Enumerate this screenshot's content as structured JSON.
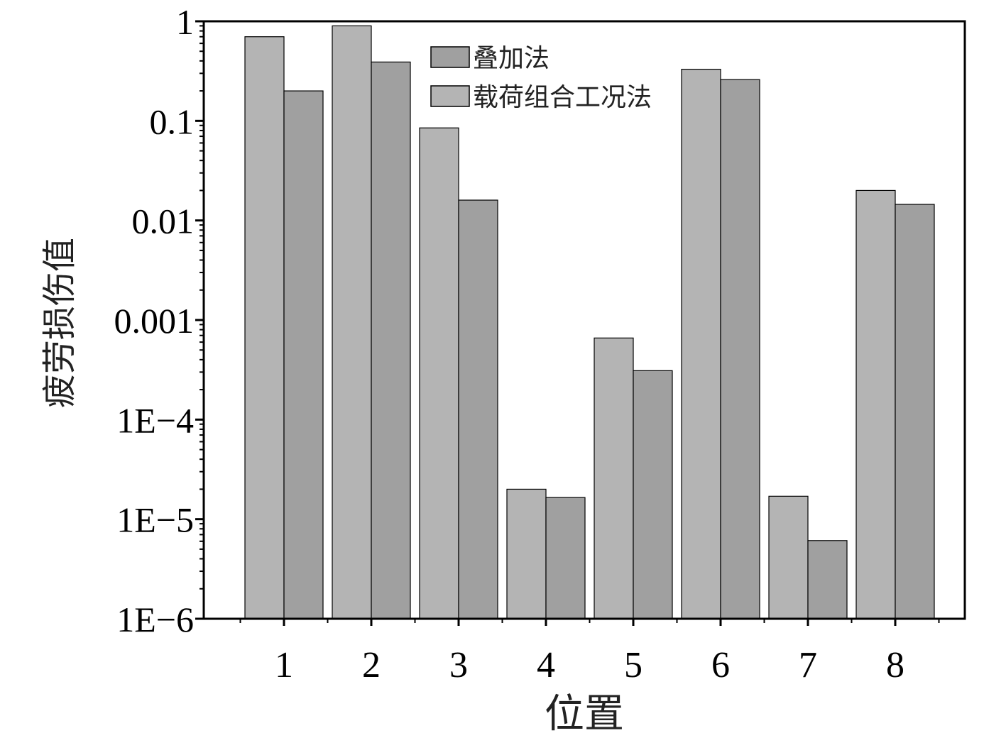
{
  "chart_data": {
    "type": "bar",
    "title": "",
    "xlabel": "位置",
    "ylabel": "疲劳损伤值",
    "yscale": "log",
    "ylim": [
      1e-06,
      1
    ],
    "yticks": [
      1,
      0.1,
      0.01,
      0.001,
      0.0001,
      1e-05,
      1e-06
    ],
    "ytick_labels": [
      "1",
      "0.1",
      "0.01",
      "0.001",
      "1E−4",
      "1E−5",
      "1E−6"
    ],
    "categories": [
      "1",
      "2",
      "3",
      "4",
      "5",
      "6",
      "7",
      "8"
    ],
    "series": [
      {
        "name": "载荷组合工况法",
        "color": "#b4b4b4",
        "values": [
          0.7,
          0.9,
          0.085,
          2e-05,
          0.00066,
          0.33,
          1.7e-05,
          0.02
        ]
      },
      {
        "name": "叠加法",
        "color": "#a0a0a0",
        "values": [
          0.2,
          0.39,
          0.016,
          1.65e-05,
          0.00031,
          0.26,
          6.1e-06,
          0.0145
        ]
      }
    ],
    "legend": {
      "position": "top-center",
      "entries": [
        {
          "label": "叠加法",
          "color": "#a0a0a0"
        },
        {
          "label": "载荷组合工况法",
          "color": "#b4b4b4"
        }
      ]
    },
    "grid": false
  }
}
